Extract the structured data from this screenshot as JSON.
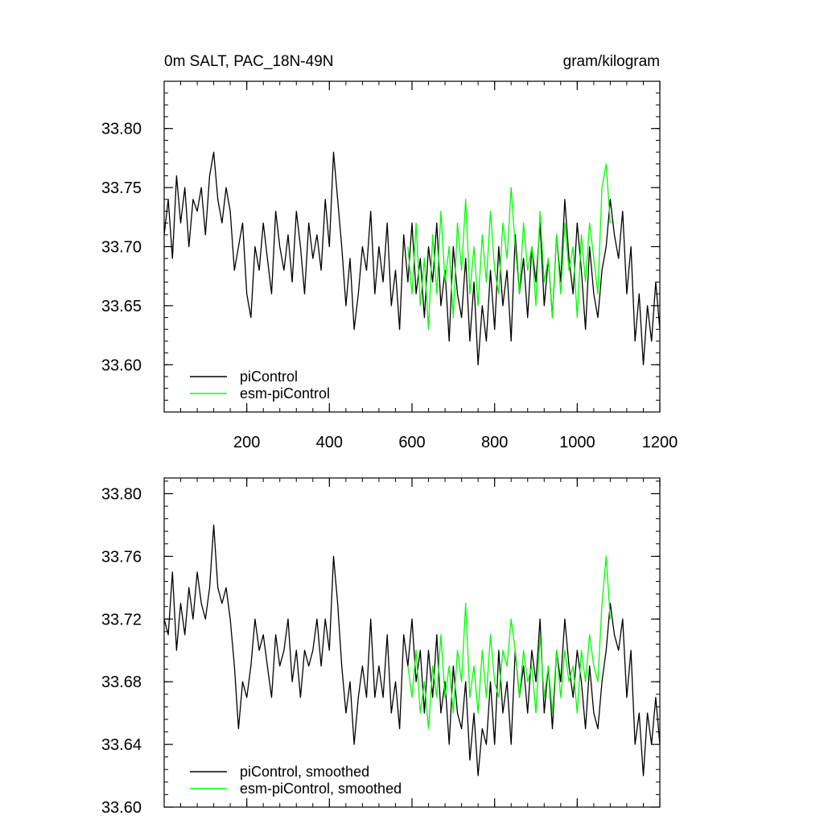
{
  "chart_data": [
    {
      "type": "line",
      "title": "0m SALT, PAC_18N-49N",
      "units": "gram/kilogram",
      "xlim": [
        0,
        1200
      ],
      "ylim": [
        33.56,
        33.84
      ],
      "x_ticks": [
        200,
        400,
        600,
        800,
        1000,
        1200
      ],
      "x_tick_labels": [
        "200",
        "400",
        "600",
        "800",
        "1000",
        "1200"
      ],
      "y_ticks": [
        33.6,
        33.65,
        33.7,
        33.75,
        33.8
      ],
      "y_tick_labels": [
        "33.60",
        "33.65",
        "33.70",
        "33.75",
        "33.80"
      ],
      "legend_position": "bottom-left",
      "legend": [
        "piControl",
        "esm-piControl"
      ],
      "series": [
        {
          "name": "piControl",
          "color": "#000000",
          "x": [
            0,
            10,
            20,
            30,
            40,
            50,
            60,
            70,
            80,
            90,
            100,
            110,
            120,
            130,
            140,
            150,
            160,
            170,
            180,
            190,
            200,
            210,
            220,
            230,
            240,
            250,
            260,
            270,
            280,
            290,
            300,
            310,
            320,
            330,
            340,
            350,
            360,
            370,
            380,
            390,
            400,
            410,
            420,
            430,
            440,
            450,
            460,
            470,
            480,
            490,
            500,
            510,
            520,
            530,
            540,
            550,
            560,
            570,
            580,
            590,
            600,
            610,
            620,
            630,
            640,
            650,
            660,
            670,
            680,
            690,
            700,
            710,
            720,
            730,
            740,
            750,
            760,
            770,
            780,
            790,
            800,
            810,
            820,
            830,
            840,
            850,
            860,
            870,
            880,
            890,
            900,
            910,
            920,
            930,
            940,
            950,
            960,
            970,
            980,
            990,
            1000,
            1010,
            1020,
            1030,
            1040,
            1050,
            1060,
            1070,
            1080,
            1090,
            1100,
            1110,
            1120,
            1130,
            1140,
            1150,
            1160,
            1170,
            1180,
            1190,
            1200
          ],
          "y": [
            33.71,
            33.74,
            33.69,
            33.76,
            33.72,
            33.75,
            33.7,
            33.74,
            33.73,
            33.75,
            33.71,
            33.76,
            33.78,
            33.74,
            33.72,
            33.75,
            33.73,
            33.68,
            33.7,
            33.72,
            33.66,
            33.64,
            33.7,
            33.68,
            33.72,
            33.69,
            33.66,
            33.73,
            33.7,
            33.68,
            33.71,
            33.67,
            33.73,
            33.7,
            33.66,
            33.72,
            33.69,
            33.71,
            33.68,
            33.74,
            33.7,
            33.78,
            33.74,
            33.7,
            33.65,
            33.69,
            33.63,
            33.66,
            33.7,
            33.68,
            33.73,
            33.66,
            33.7,
            33.67,
            33.72,
            33.65,
            33.68,
            33.63,
            33.71,
            33.67,
            33.72,
            33.66,
            33.69,
            33.64,
            33.7,
            33.67,
            33.72,
            33.65,
            33.68,
            33.62,
            33.7,
            33.66,
            33.64,
            33.69,
            33.62,
            33.67,
            33.6,
            33.65,
            33.62,
            33.68,
            33.63,
            33.7,
            33.65,
            33.68,
            33.62,
            33.71,
            33.66,
            33.69,
            33.64,
            33.7,
            33.67,
            33.72,
            33.65,
            33.69,
            33.64,
            33.71,
            33.67,
            33.74,
            33.69,
            33.66,
            33.72,
            33.68,
            33.63,
            33.7,
            33.66,
            33.64,
            33.68,
            33.7,
            33.74,
            33.71,
            33.69,
            33.73,
            33.66,
            33.7,
            33.62,
            33.66,
            33.6,
            33.65,
            33.62,
            33.67,
            33.63
          ]
        },
        {
          "name": "esm-piControl",
          "color": "#00ff00",
          "x": [
            590,
            600,
            610,
            620,
            630,
            640,
            650,
            660,
            670,
            680,
            690,
            700,
            710,
            720,
            730,
            740,
            750,
            760,
            770,
            780,
            790,
            800,
            810,
            820,
            830,
            840,
            850,
            860,
            870,
            880,
            890,
            900,
            910,
            920,
            930,
            940,
            950,
            960,
            970,
            980,
            990,
            1000,
            1010,
            1020,
            1030,
            1040,
            1050,
            1060,
            1070,
            1080
          ],
          "y": [
            33.7,
            33.66,
            33.72,
            33.65,
            33.69,
            33.63,
            33.71,
            33.66,
            33.73,
            33.67,
            33.7,
            33.64,
            33.72,
            33.68,
            33.74,
            33.66,
            33.7,
            33.65,
            33.71,
            33.67,
            33.73,
            33.68,
            33.66,
            33.72,
            33.69,
            33.75,
            33.7,
            33.66,
            33.72,
            33.68,
            33.7,
            33.65,
            33.73,
            33.67,
            33.69,
            33.64,
            33.71,
            33.66,
            33.72,
            33.68,
            33.7,
            33.64,
            33.71,
            33.67,
            33.72,
            33.69,
            33.66,
            33.75,
            33.77,
            33.72
          ]
        }
      ]
    },
    {
      "type": "line",
      "xlim": [
        0,
        1200
      ],
      "ylim": [
        33.6,
        33.81
      ],
      "x_ticks": [
        200,
        400,
        600,
        800,
        1000,
        1200
      ],
      "y_ticks": [
        33.6,
        33.64,
        33.68,
        33.72,
        33.76,
        33.8
      ],
      "y_tick_labels": [
        "33.60",
        "33.64",
        "33.68",
        "33.72",
        "33.76",
        "33.80"
      ],
      "legend_position": "bottom-left",
      "legend": [
        "piControl, smoothed",
        "esm-piControl, smoothed"
      ],
      "series": [
        {
          "name": "piControl, smoothed",
          "color": "#000000",
          "x": [
            0,
            10,
            20,
            30,
            40,
            50,
            60,
            70,
            80,
            90,
            100,
            110,
            120,
            130,
            140,
            150,
            160,
            170,
            180,
            190,
            200,
            210,
            220,
            230,
            240,
            250,
            260,
            270,
            280,
            290,
            300,
            310,
            320,
            330,
            340,
            350,
            360,
            370,
            380,
            390,
            400,
            410,
            420,
            430,
            440,
            450,
            460,
            470,
            480,
            490,
            500,
            510,
            520,
            530,
            540,
            550,
            560,
            570,
            580,
            590,
            600,
            610,
            620,
            630,
            640,
            650,
            660,
            670,
            680,
            690,
            700,
            710,
            720,
            730,
            740,
            750,
            760,
            770,
            780,
            790,
            800,
            810,
            820,
            830,
            840,
            850,
            860,
            870,
            880,
            890,
            900,
            910,
            920,
            930,
            940,
            950,
            960,
            970,
            980,
            990,
            1000,
            1010,
            1020,
            1030,
            1040,
            1050,
            1060,
            1070,
            1080,
            1090,
            1100,
            1110,
            1120,
            1130,
            1140,
            1150,
            1160,
            1170,
            1180,
            1190,
            1200
          ],
          "y": [
            33.72,
            33.71,
            33.75,
            33.7,
            33.73,
            33.71,
            33.74,
            33.72,
            33.75,
            33.73,
            33.72,
            33.74,
            33.78,
            33.74,
            33.73,
            33.74,
            33.72,
            33.69,
            33.65,
            33.68,
            33.67,
            33.69,
            33.72,
            33.7,
            33.71,
            33.69,
            33.67,
            33.71,
            33.69,
            33.7,
            33.72,
            33.68,
            33.7,
            33.67,
            33.7,
            33.69,
            33.7,
            33.72,
            33.69,
            33.72,
            33.7,
            33.76,
            33.73,
            33.69,
            33.66,
            33.68,
            33.64,
            33.67,
            33.69,
            33.67,
            33.72,
            33.67,
            33.69,
            33.67,
            33.71,
            33.66,
            33.68,
            33.65,
            33.71,
            33.69,
            33.72,
            33.68,
            33.7,
            33.66,
            33.7,
            33.67,
            33.71,
            33.66,
            33.68,
            33.64,
            33.69,
            33.66,
            33.65,
            33.68,
            33.63,
            33.66,
            33.62,
            33.65,
            33.64,
            33.68,
            33.64,
            33.7,
            33.66,
            33.68,
            33.64,
            33.7,
            33.67,
            33.69,
            33.66,
            33.7,
            33.68,
            33.72,
            33.66,
            33.69,
            33.65,
            33.7,
            33.68,
            33.72,
            33.69,
            33.67,
            33.7,
            33.68,
            33.65,
            33.69,
            33.66,
            33.65,
            33.68,
            33.7,
            33.73,
            33.71,
            33.7,
            33.72,
            33.67,
            33.7,
            33.64,
            33.66,
            33.62,
            33.66,
            33.64,
            33.67,
            33.64
          ]
        },
        {
          "name": "esm-piControl, smoothed",
          "color": "#00ff00",
          "x": [
            590,
            600,
            610,
            620,
            630,
            640,
            650,
            660,
            670,
            680,
            690,
            700,
            710,
            720,
            730,
            740,
            750,
            760,
            770,
            780,
            790,
            800,
            810,
            820,
            830,
            840,
            850,
            860,
            870,
            880,
            890,
            900,
            910,
            920,
            930,
            940,
            950,
            960,
            970,
            980,
            990,
            1000,
            1010,
            1020,
            1030,
            1040,
            1050,
            1060,
            1070,
            1080
          ],
          "y": [
            33.69,
            33.67,
            33.7,
            33.66,
            33.68,
            33.65,
            33.69,
            33.67,
            33.71,
            33.67,
            33.69,
            33.66,
            33.7,
            33.68,
            33.73,
            33.67,
            33.69,
            33.66,
            33.7,
            33.67,
            33.71,
            33.68,
            33.67,
            33.7,
            33.69,
            33.72,
            33.7,
            33.67,
            33.7,
            33.68,
            33.69,
            33.66,
            33.71,
            33.67,
            33.69,
            33.66,
            33.7,
            33.67,
            33.7,
            33.68,
            33.69,
            33.66,
            33.7,
            33.68,
            33.71,
            33.69,
            33.68,
            33.73,
            33.76,
            33.72
          ]
        }
      ]
    }
  ]
}
